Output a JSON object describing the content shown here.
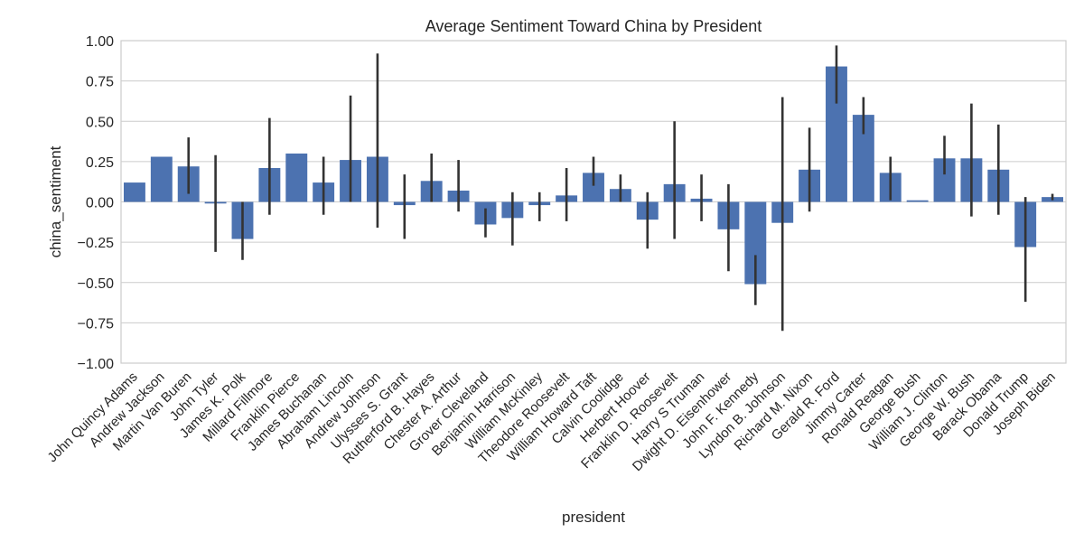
{
  "chart_data": {
    "type": "bar",
    "title": "Average Sentiment Toward China by President",
    "xlabel": "president",
    "ylabel": "china_sentiment",
    "ylim": [
      -1.0,
      1.0
    ],
    "yticks": [
      "1.00",
      "0.75",
      "0.50",
      "0.25",
      "0.00",
      "−0.25",
      "−0.50",
      "−0.75",
      "−1.00"
    ],
    "ytick_values": [
      1.0,
      0.75,
      0.5,
      0.25,
      0.0,
      -0.25,
      -0.5,
      -0.75,
      -1.0
    ],
    "grid": "horizontal",
    "bar_color": "#4c72b0",
    "errorbar_color": "#333333",
    "categories": [
      "John Quincy Adams",
      "Andrew Jackson",
      "Martin Van Buren",
      "John Tyler",
      "James K. Polk",
      "Millard Fillmore",
      "Franklin Pierce",
      "James Buchanan",
      "Abraham Lincoln",
      "Andrew Johnson",
      "Ulysses S. Grant",
      "Rutherford B. Hayes",
      "Chester A. Arthur",
      "Grover Cleveland",
      "Benjamin Harrison",
      "William McKinley",
      "Theodore Roosevelt",
      "William Howard Taft",
      "Calvin Coolidge",
      "Herbert Hoover",
      "Franklin D. Roosevelt",
      "Harry S Truman",
      "Dwight D. Eisenhower",
      "John F. Kennedy",
      "Lyndon B. Johnson",
      "Richard M. Nixon",
      "Gerald R. Ford",
      "Jimmy Carter",
      "Ronald Reagan",
      "George Bush",
      "William J. Clinton",
      "George W. Bush",
      "Barack Obama",
      "Donald Trump",
      "Joseph Biden"
    ],
    "values": [
      0.12,
      0.28,
      0.22,
      -0.01,
      -0.23,
      0.21,
      0.3,
      0.12,
      0.26,
      0.28,
      -0.02,
      0.13,
      0.07,
      -0.14,
      -0.1,
      -0.02,
      0.04,
      0.18,
      0.08,
      -0.11,
      0.11,
      0.02,
      -0.17,
      -0.51,
      -0.13,
      0.2,
      0.84,
      0.54,
      0.18,
      0.01,
      0.27,
      0.27,
      0.2,
      -0.28,
      0.03
    ],
    "ci": [
      null,
      null,
      [
        0.05,
        0.4
      ],
      [
        -0.31,
        0.29
      ],
      [
        -0.36,
        0.0
      ],
      [
        -0.08,
        0.52
      ],
      null,
      [
        -0.08,
        0.28
      ],
      [
        0.0,
        0.66
      ],
      [
        -0.16,
        0.92
      ],
      [
        -0.23,
        0.17
      ],
      [
        0.0,
        0.3
      ],
      [
        -0.06,
        0.26
      ],
      [
        -0.22,
        -0.04
      ],
      [
        -0.27,
        0.06
      ],
      [
        -0.12,
        0.06
      ],
      [
        -0.12,
        0.21
      ],
      [
        0.1,
        0.28
      ],
      [
        0.0,
        0.17
      ],
      [
        -0.29,
        0.06
      ],
      [
        -0.23,
        0.5
      ],
      [
        -0.12,
        0.17
      ],
      [
        -0.43,
        0.11
      ],
      [
        -0.64,
        -0.33
      ],
      [
        -0.8,
        0.65
      ],
      [
        -0.06,
        0.46
      ],
      [
        0.61,
        0.97
      ],
      [
        0.42,
        0.65
      ],
      [
        0.01,
        0.28
      ],
      null,
      [
        0.17,
        0.41
      ],
      [
        -0.09,
        0.61
      ],
      [
        -0.08,
        0.48
      ],
      [
        -0.62,
        0.03
      ],
      [
        0.01,
        0.05
      ]
    ]
  }
}
